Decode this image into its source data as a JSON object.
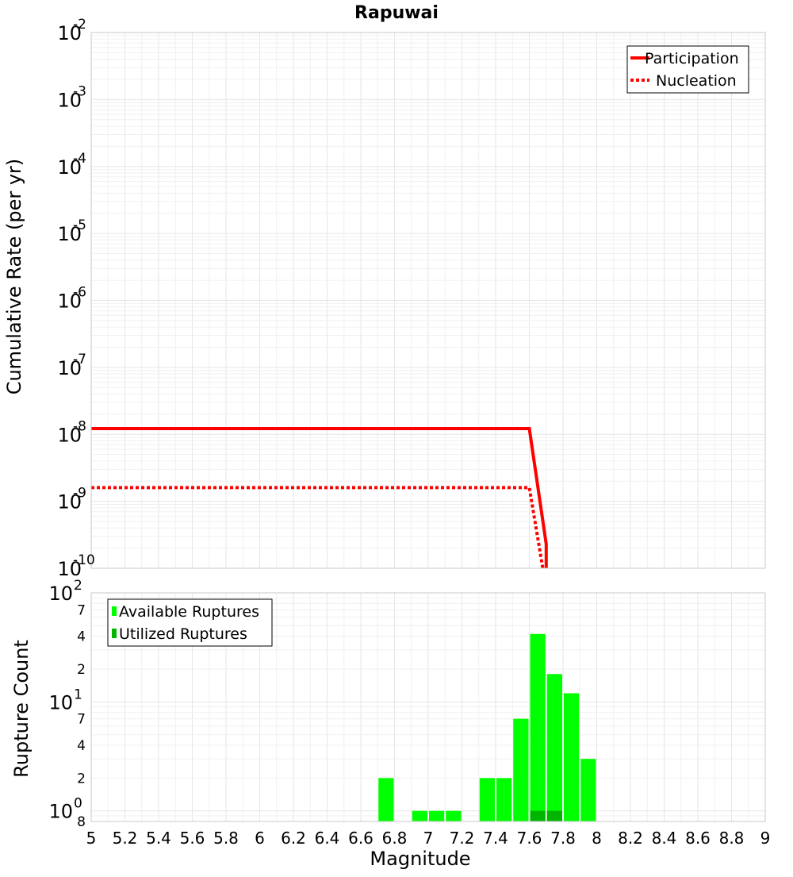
{
  "title": "Rapuwai",
  "colors": {
    "participation": "#ff0000",
    "nucleation": "#ff0000",
    "available": "#00ff00",
    "utilized": "#00b400"
  },
  "chart_data": [
    {
      "type": "line",
      "title": "Rapuwai",
      "xlabel": "",
      "ylabel": "Cumulative Rate (per yr)",
      "yscale": "log",
      "xlim": [
        5,
        9
      ],
      "ylim": [
        1e-10,
        0.01
      ],
      "grid": true,
      "legend_position": "top-right",
      "y_ticks": [
        {
          "base": "10",
          "exp": "-2",
          "value": 0.01
        },
        {
          "base": "10",
          "exp": "-3",
          "value": 0.001
        },
        {
          "base": "10",
          "exp": "-4",
          "value": 0.0001
        },
        {
          "base": "10",
          "exp": "-5",
          "value": 1e-05
        },
        {
          "base": "10",
          "exp": "-6",
          "value": 1e-06
        },
        {
          "base": "10",
          "exp": "-7",
          "value": 1e-07
        },
        {
          "base": "10",
          "exp": "-8",
          "value": 1e-08
        },
        {
          "base": "10",
          "exp": "-9",
          "value": 1e-09
        },
        {
          "base": "10",
          "exp": "-10",
          "value": 1e-10
        }
      ],
      "series": [
        {
          "name": "Participation",
          "style": "solid",
          "x": [
            5.0,
            7.6,
            7.7,
            7.7
          ],
          "y": [
            1.22e-08,
            1.22e-08,
            2.3e-10,
            1e-10
          ]
        },
        {
          "name": "Nucleation",
          "style": "dotted",
          "x": [
            5.0,
            7.6,
            7.68
          ],
          "y": [
            1.6e-09,
            1.6e-09,
            1e-10
          ]
        }
      ]
    },
    {
      "type": "bar",
      "xlabel": "Magnitude",
      "ylabel": "Rupture Count",
      "yscale": "log",
      "xlim": [
        5,
        9
      ],
      "ylim": [
        0.8,
        100
      ],
      "grid": true,
      "legend_position": "top-left",
      "bar_width": 0.1,
      "x_ticks": [
        "5",
        "5.2",
        "5.4",
        "5.6",
        "5.8",
        "6",
        "6.2",
        "6.4",
        "6.6",
        "6.8",
        "7",
        "7.2",
        "7.4",
        "7.6",
        "7.8",
        "8",
        "8.2",
        "8.4",
        "8.6",
        "8.8",
        "9"
      ],
      "y_major_ticks": [
        {
          "base": "10",
          "exp": "0",
          "value": 1
        },
        {
          "base": "10",
          "exp": "1",
          "value": 10
        },
        {
          "base": "10",
          "exp": "2",
          "value": 100
        }
      ],
      "y_minor_ticks": [
        {
          "label": "8",
          "value": 0.8
        },
        {
          "label": "2",
          "value": 2
        },
        {
          "label": "4",
          "value": 4
        },
        {
          "label": "7",
          "value": 7
        },
        {
          "label": "2",
          "value": 20
        },
        {
          "label": "4",
          "value": 40
        },
        {
          "label": "7",
          "value": 70
        }
      ],
      "categories": [
        6.75,
        6.95,
        7.05,
        7.15,
        7.35,
        7.45,
        7.55,
        7.65,
        7.75,
        7.85,
        7.95
      ],
      "series": [
        {
          "name": "Available Ruptures",
          "values": [
            2,
            1,
            1,
            1,
            2,
            2,
            7,
            42,
            18,
            12,
            3
          ]
        },
        {
          "name": "Utilized Ruptures",
          "values": [
            0,
            0,
            0,
            0,
            0,
            0,
            0,
            1,
            1,
            0,
            0
          ]
        }
      ]
    }
  ]
}
